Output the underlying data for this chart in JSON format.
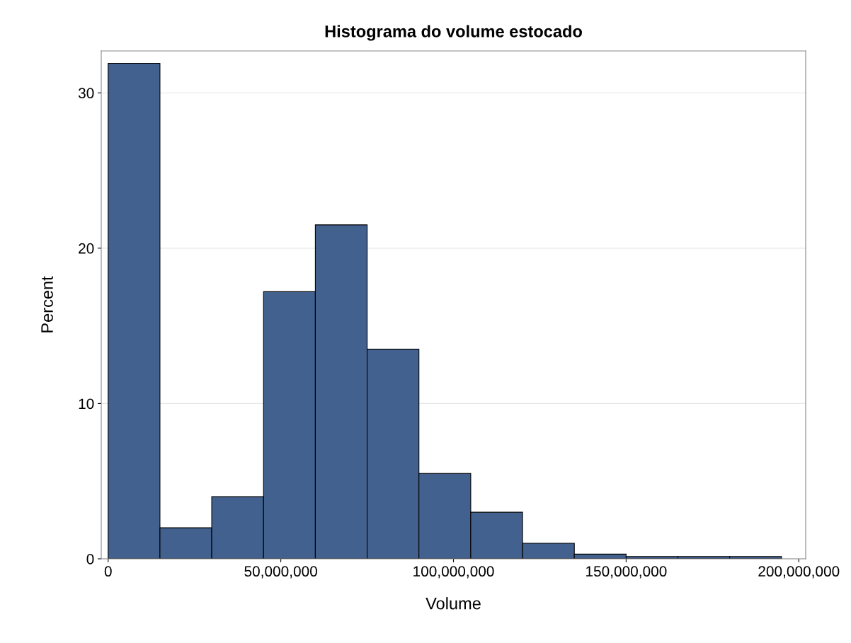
{
  "chart_data": {
    "type": "histogram",
    "title": "Histograma do volume estocado",
    "xlabel": "Volume",
    "ylabel": "Percent",
    "bins": [
      0,
      15000000,
      30000000,
      45000000,
      60000000,
      75000000,
      90000000,
      105000000,
      120000000,
      135000000,
      150000000,
      165000000,
      180000000,
      195000000
    ],
    "values": [
      31.9,
      2.0,
      4.0,
      17.2,
      21.5,
      13.5,
      5.5,
      3.0,
      1.0,
      0.3,
      0.15,
      0.15,
      0.15
    ],
    "color": "#42618f",
    "xlim": [
      -2000000,
      202000000
    ],
    "xticks": [
      {
        "value": 0,
        "label": "0"
      },
      {
        "value": 50000000,
        "label": "50,000,000"
      },
      {
        "value": 100000000,
        "label": "100,000,000"
      },
      {
        "value": 150000000,
        "label": "150,000,000"
      },
      {
        "value": 200000000,
        "label": "200,000,000"
      }
    ],
    "ylim": [
      0,
      32.7
    ],
    "yticks": [
      0,
      10,
      20,
      30
    ],
    "grid": "y"
  }
}
